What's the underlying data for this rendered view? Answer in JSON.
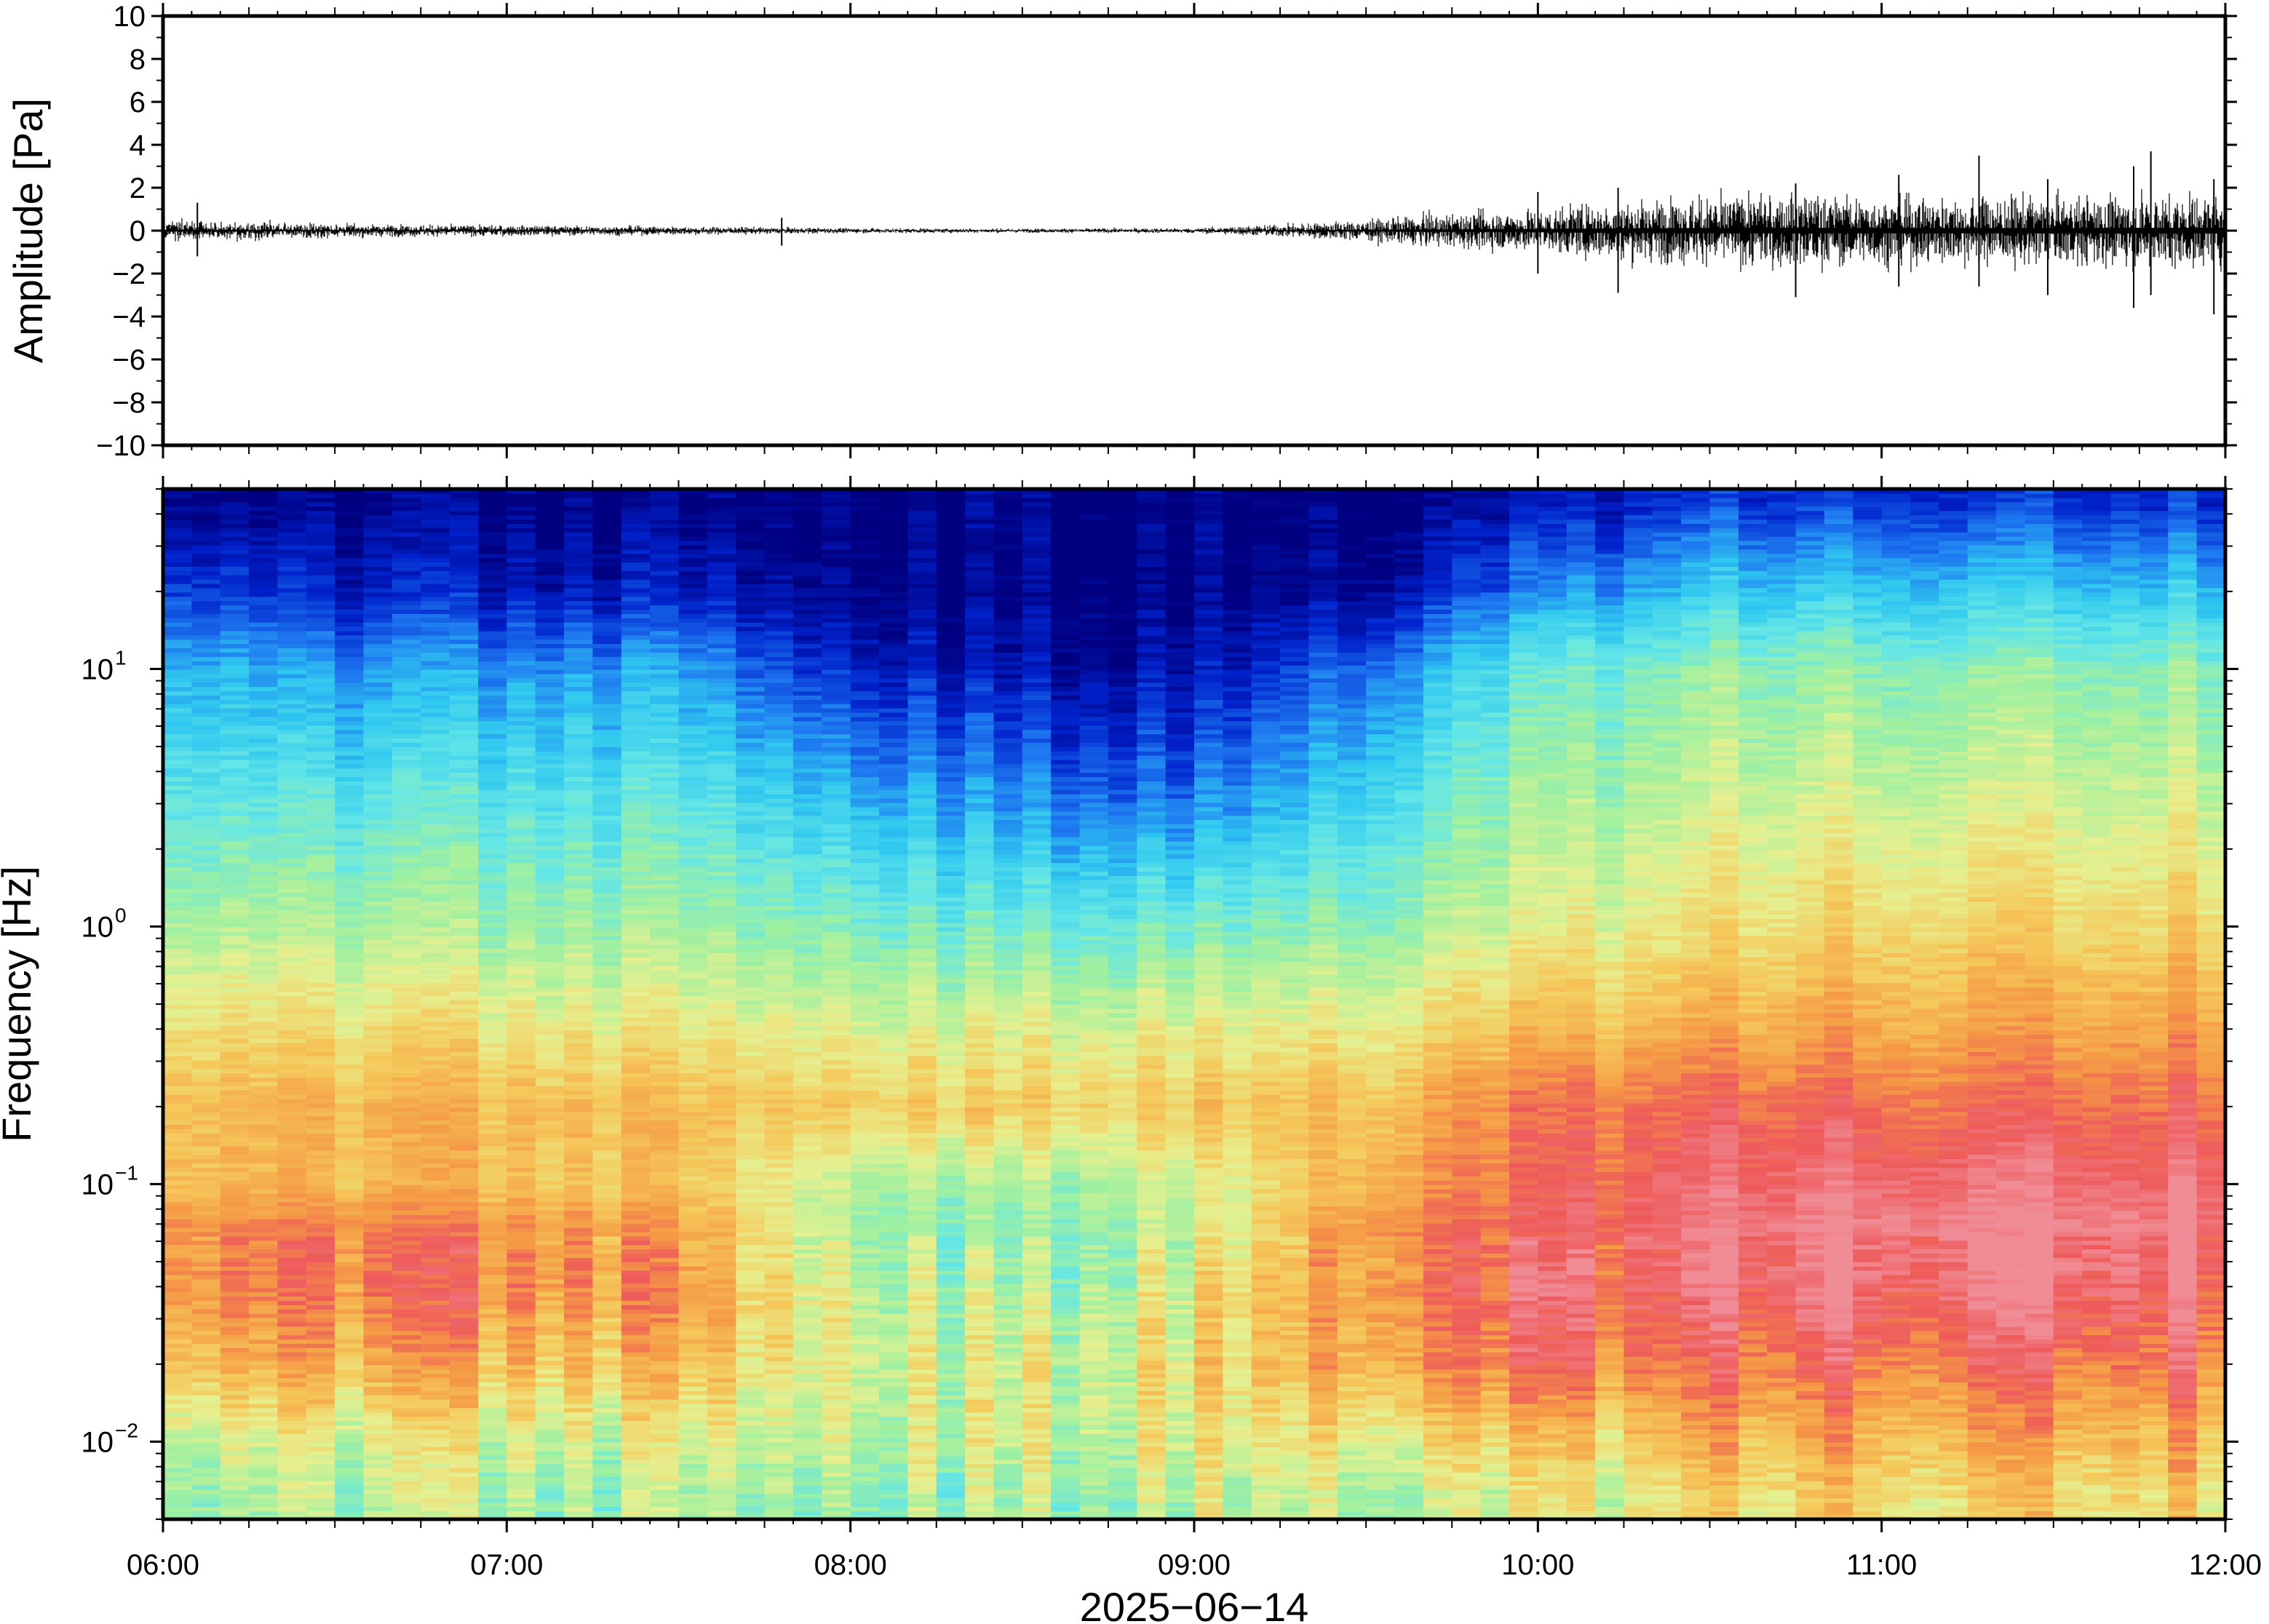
{
  "chart_data": [
    {
      "type": "line",
      "panel": "waveform",
      "ylabel": "Amplitude [Pa]",
      "ylim": [
        -10,
        10
      ],
      "y_ticks": [
        10,
        8,
        6,
        4,
        2,
        0,
        -2,
        -4,
        -6,
        -8,
        -10
      ],
      "y_tick_labels": [
        "10",
        "8",
        "6",
        "4",
        "2",
        "0",
        "−2",
        "−4",
        "−6",
        "−8",
        "−10"
      ],
      "xlim": [
        "06:00",
        "12:00"
      ],
      "envelope": {
        "x": [
          "06:00",
          "06:30",
          "07:00",
          "07:30",
          "08:00",
          "08:30",
          "09:00",
          "09:15",
          "09:30",
          "09:45",
          "10:00",
          "10:15",
          "10:30",
          "10:45",
          "11:00",
          "11:15",
          "11:30",
          "11:45",
          "12:00"
        ],
        "amplitude": [
          0.5,
          0.3,
          0.25,
          0.2,
          0.12,
          0.1,
          0.12,
          0.3,
          0.5,
          0.8,
          1.0,
          1.4,
          1.6,
          1.7,
          1.6,
          1.6,
          1.6,
          1.7,
          1.7
        ]
      },
      "peaks": [
        {
          "x": "06:06",
          "max": 1.3,
          "min": -1.2
        },
        {
          "x": "07:48",
          "max": 0.6,
          "min": -0.7
        },
        {
          "x": "10:00",
          "max": 1.8,
          "min": -2.0
        },
        {
          "x": "10:14",
          "max": 2.0,
          "min": -2.9
        },
        {
          "x": "10:45",
          "max": 2.2,
          "min": -3.1
        },
        {
          "x": "11:03",
          "max": 2.6,
          "min": -2.6
        },
        {
          "x": "11:17",
          "max": 3.5,
          "min": -2.6
        },
        {
          "x": "11:29",
          "max": 2.4,
          "min": -3.0
        },
        {
          "x": "11:44",
          "max": 3.0,
          "min": -3.6
        },
        {
          "x": "11:47",
          "max": 3.7,
          "min": -3.0
        },
        {
          "x": "11:58",
          "max": 2.4,
          "min": -3.9
        }
      ],
      "color": "#000000"
    },
    {
      "type": "heatmap",
      "panel": "spectrogram",
      "ylabel": "Frequency [Hz]",
      "y_scale": "log",
      "ylim_hz": [
        0.005,
        50
      ],
      "y_ticks": [
        10,
        1,
        0.1,
        0.01
      ],
      "y_tick_labels": [
        {
          "base": "10",
          "exp": "1"
        },
        {
          "base": "10",
          "exp": "0"
        },
        {
          "base": "10",
          "exp": "−1"
        },
        {
          "base": "10",
          "exp": "−2"
        }
      ],
      "xlabel": "2025−06−14",
      "xlim": [
        "06:00",
        "12:00"
      ],
      "x_ticks": [
        "06:00",
        "07:00",
        "08:00",
        "09:00",
        "10:00",
        "11:00",
        "12:00"
      ],
      "colormap": "jet",
      "colormap_stops": [
        "#000080",
        "#0022cc",
        "#1e78f0",
        "#30c8f0",
        "#64e6e6",
        "#a0f0a0",
        "#e6f090",
        "#f5c85a",
        "#f59a46",
        "#ee5a5a",
        "#f08c96"
      ],
      "column_times": [
        "06:00",
        "06:30",
        "07:00",
        "07:30",
        "08:00",
        "08:30",
        "09:00",
        "09:30",
        "10:00",
        "10:30",
        "11:00",
        "11:30",
        "12:00"
      ],
      "profile_freqs_hz": [
        0.006,
        0.01,
        0.02,
        0.04,
        0.07,
        0.1,
        0.2,
        0.4,
        1,
        3,
        10,
        20,
        45
      ],
      "relative_power": [
        [
          0.52,
          0.58,
          0.76,
          0.84,
          0.82,
          0.74,
          0.74,
          0.66,
          0.54,
          0.42,
          0.3,
          0.16,
          0.03
        ],
        [
          0.54,
          0.6,
          0.76,
          0.86,
          0.84,
          0.74,
          0.74,
          0.66,
          0.52,
          0.4,
          0.24,
          0.1,
          0.01
        ],
        [
          0.52,
          0.58,
          0.74,
          0.84,
          0.82,
          0.72,
          0.74,
          0.64,
          0.5,
          0.4,
          0.24,
          0.08,
          0.01
        ],
        [
          0.52,
          0.58,
          0.72,
          0.8,
          0.78,
          0.7,
          0.72,
          0.62,
          0.5,
          0.4,
          0.26,
          0.08,
          0.01
        ],
        [
          0.5,
          0.56,
          0.6,
          0.58,
          0.52,
          0.54,
          0.7,
          0.6,
          0.46,
          0.3,
          0.1,
          0.02,
          0.0
        ],
        [
          0.5,
          0.56,
          0.56,
          0.5,
          0.46,
          0.5,
          0.68,
          0.58,
          0.42,
          0.22,
          0.05,
          0.0,
          0.0
        ],
        [
          0.54,
          0.6,
          0.64,
          0.6,
          0.56,
          0.56,
          0.7,
          0.6,
          0.44,
          0.2,
          0.05,
          0.0,
          0.0
        ],
        [
          0.58,
          0.66,
          0.82,
          0.86,
          0.84,
          0.78,
          0.74,
          0.64,
          0.5,
          0.38,
          0.22,
          0.05,
          0.0
        ],
        [
          0.56,
          0.66,
          0.84,
          0.9,
          0.88,
          0.86,
          0.84,
          0.72,
          0.58,
          0.5,
          0.4,
          0.2,
          0.05
        ],
        [
          0.66,
          0.74,
          0.86,
          0.94,
          0.96,
          0.94,
          0.88,
          0.76,
          0.64,
          0.56,
          0.48,
          0.32,
          0.12
        ],
        [
          0.68,
          0.76,
          0.88,
          0.98,
          1.0,
          0.96,
          0.88,
          0.78,
          0.68,
          0.58,
          0.48,
          0.32,
          0.12
        ],
        [
          0.68,
          0.76,
          0.88,
          0.98,
          1.0,
          0.96,
          0.88,
          0.78,
          0.68,
          0.58,
          0.48,
          0.32,
          0.12
        ],
        [
          0.68,
          0.76,
          0.88,
          0.96,
          0.98,
          0.96,
          0.88,
          0.8,
          0.68,
          0.58,
          0.48,
          0.32,
          0.12
        ]
      ]
    }
  ]
}
